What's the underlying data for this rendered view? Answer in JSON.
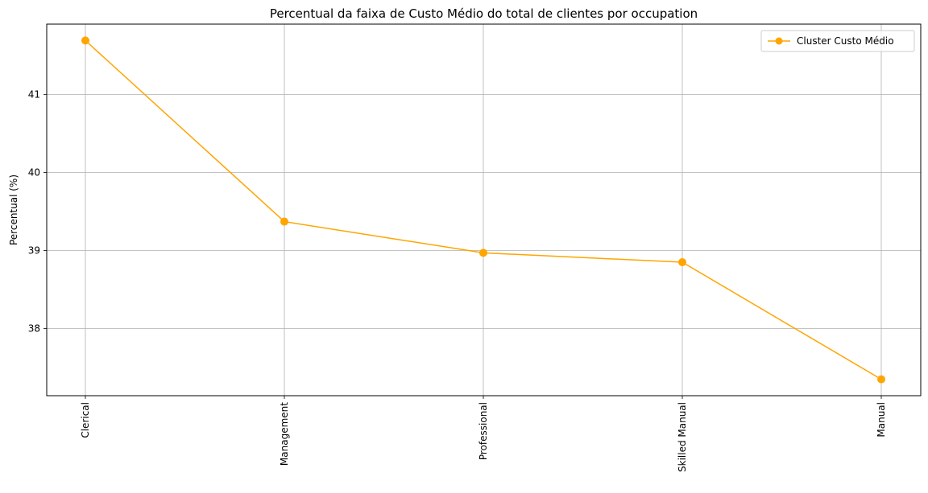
{
  "chart_data": {
    "type": "line",
    "title": "Percentual da faixa de Custo Médio do total de clientes por occupation",
    "xlabel": "",
    "ylabel": "Percentual (%)",
    "categories": [
      "Clerical",
      "Management",
      "Professional",
      "Skilled Manual",
      "Manual"
    ],
    "series": [
      {
        "name": "Cluster Custo Médio",
        "values": [
          41.69,
          39.37,
          38.97,
          38.85,
          37.35
        ],
        "color": "#ffa500",
        "marker": "circle"
      }
    ],
    "yticks": [
      38,
      39,
      40,
      41
    ],
    "ylim": [
      37.14,
      41.9
    ],
    "grid": true,
    "legend_position": "top-right",
    "x_tick_rotation": "vertical"
  }
}
